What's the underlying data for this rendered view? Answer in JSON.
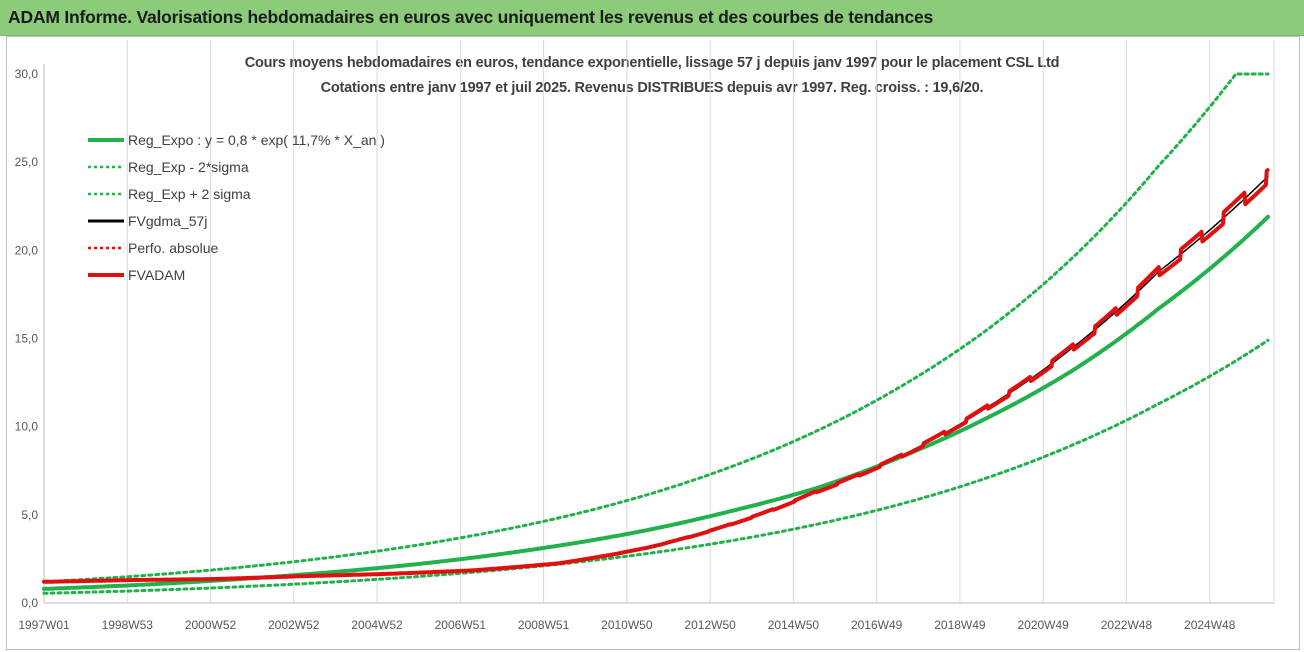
{
  "header": {
    "title": "ADAM Informe. Valorisations hebdomadaires en euros avec uniquement les revenus et des courbes de tendances"
  },
  "chart_data": {
    "type": "line",
    "title": "Cours moyens hebdomadaires en euros, tendance exponentielle, lissage 57 j depuis janv 1997 pour le placement CSL Ltd",
    "subtitle": "Cotations entre janv 1997 et juil 2025. Revenus DISTRIBUES depuis avr 1997. Reg. croiss. : 19,6/20.",
    "xlabel": "",
    "ylabel": "",
    "ylim": [
      0,
      30
    ],
    "yticks": [
      "0,0",
      "5,0",
      "10,0",
      "15,0",
      "20,0",
      "25,0",
      "30,0"
    ],
    "x_tick_labels": [
      "1997W01",
      "1998W53",
      "2000W52",
      "2002W52",
      "2004W52",
      "2006W51",
      "2008W51",
      "2010W50",
      "2012W50",
      "2014W50",
      "2016W49",
      "2018W49",
      "2020W49",
      "2022W48",
      "2024W48"
    ],
    "x_range_years": [
      1997.0,
      2025.55
    ],
    "grid": "vertical",
    "legend_position": "top-left",
    "series": [
      {
        "name": "Reg_Expo : y = 0,8 * exp( 11,7% *  X_an )",
        "color": "#22b14c",
        "style": "solid",
        "x": [
          1997,
          1999,
          2001,
          2003,
          2005,
          2007,
          2009,
          2011,
          2013,
          2015,
          2017,
          2019,
          2021,
          2023,
          2025.55
        ],
        "values": [
          0.8,
          1.0,
          1.27,
          1.61,
          2.03,
          2.57,
          3.25,
          4.1,
          5.2,
          6.5,
          8.3,
          10.5,
          13.2,
          16.7,
          21.9
        ]
      },
      {
        "name": "Reg_Exp - 2*sigma",
        "color": "#22b14c",
        "style": "dotted",
        "x": [
          1997,
          1999,
          2001,
          2003,
          2005,
          2007,
          2009,
          2011,
          2013,
          2015,
          2017,
          2019,
          2021,
          2023,
          2025.55
        ],
        "values": [
          0.55,
          0.68,
          0.86,
          1.09,
          1.38,
          1.74,
          2.2,
          2.78,
          3.52,
          4.45,
          5.62,
          7.1,
          8.97,
          11.3,
          14.9
        ]
      },
      {
        "name": "Reg_Exp + 2 sigma",
        "color": "#22b14c",
        "style": "dotted",
        "x": [
          1997,
          1999,
          2001,
          2003,
          2005,
          2007,
          2009,
          2011,
          2013,
          2015,
          2017,
          2019,
          2021,
          2023,
          2024.8,
          2025.55
        ],
        "values": [
          1.2,
          1.5,
          1.89,
          2.39,
          3.02,
          3.82,
          4.82,
          6.09,
          7.7,
          9.73,
          12.3,
          15.5,
          19.6,
          24.8,
          30.0,
          30.0
        ]
      },
      {
        "name": "FVgdma_57j",
        "color": "#000000",
        "style": "solid",
        "x": [
          1997,
          1999,
          2001,
          2003,
          2005,
          2007,
          2009,
          2011,
          2013,
          2015,
          2017,
          2019,
          2021,
          2023,
          2025.55
        ],
        "values": [
          1.2,
          1.3,
          1.36,
          1.52,
          1.65,
          1.85,
          2.25,
          3.1,
          4.45,
          6.3,
          8.35,
          11.1,
          14.5,
          18.8,
          24.2
        ]
      },
      {
        "name": "Perfo. absolue",
        "color": "#e01010",
        "style": "dotted",
        "x": [
          1997,
          1999,
          2001,
          2003,
          2005,
          2007,
          2009,
          2011,
          2013,
          2015,
          2017,
          2019,
          2021,
          2023,
          2025.55
        ],
        "values": [
          1.2,
          1.3,
          1.36,
          1.52,
          1.65,
          1.85,
          2.25,
          3.1,
          4.45,
          6.3,
          8.35,
          11.1,
          14.5,
          18.8,
          24.2
        ]
      },
      {
        "name": "FVADAM",
        "color": "#e01010",
        "style": "solid",
        "x": [
          1997,
          1999,
          2001,
          2003,
          2005,
          2007,
          2009,
          2011,
          2013,
          2015,
          2017,
          2019,
          2021,
          2023,
          2025.55
        ],
        "values": [
          1.2,
          1.3,
          1.36,
          1.52,
          1.65,
          1.85,
          2.25,
          3.1,
          4.45,
          6.3,
          8.35,
          11.1,
          14.5,
          18.8,
          24.2
        ]
      }
    ]
  }
}
